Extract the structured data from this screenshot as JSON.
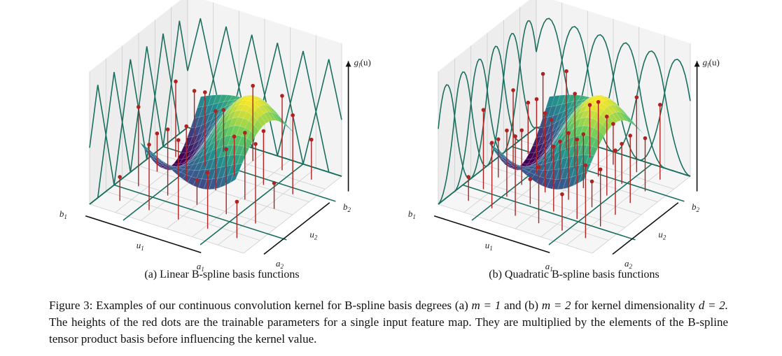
{
  "figure": {
    "panel_a": {
      "axis_label_z": "g",
      "axis_label_z_sub": "l",
      "axis_label_z_arg": "(u)",
      "label_b1": "b",
      "label_b2": "b",
      "label_a1": "a",
      "label_a2": "a",
      "label_u1": "u",
      "label_u2": "u",
      "sub1": "1",
      "sub2": "2",
      "caption": "(a) Linear B-spline basis functions"
    },
    "panel_b": {
      "axis_label_z": "g",
      "axis_label_z_sub": "l",
      "axis_label_z_arg": "(u)",
      "label_b1": "b",
      "label_b2": "b",
      "label_a1": "a",
      "label_a2": "a",
      "label_u1": "u",
      "label_u2": "u",
      "sub1": "1",
      "sub2": "2",
      "caption": "(b) Quadratic B-spline basis functions"
    },
    "caption": {
      "prefix": "Figure 3: Examples of our continuous convolution kernel for B-spline basis degrees (a)",
      "m_eq_1": "m = 1",
      "and_b": "and (b)",
      "m_eq_2": "m = 2",
      "for_kernel": "for kernel dimensionality",
      "d_eq_2": "d = 2.",
      "rest": "The heights of the red dots are the trainable parameters for a single input feature map. They are multiplied by the elements of the B-spline tensor product basis before influencing the kernel value."
    },
    "colors": {
      "basis_curve": "#1b6f5e",
      "stem": "#b02222",
      "grid": "#cfcfcf"
    }
  }
}
